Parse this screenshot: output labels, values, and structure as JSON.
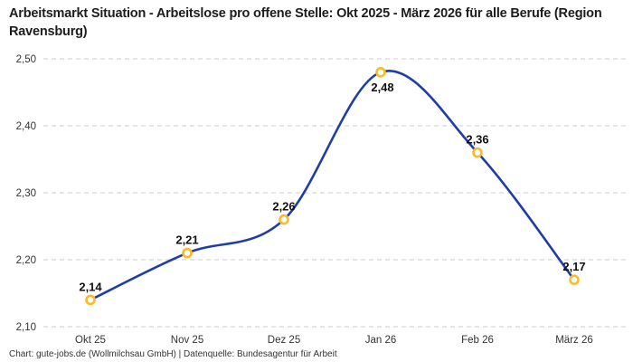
{
  "title": "Arbeitsmarkt Situation - Arbeitslose pro offene Stelle: Okt 2025 - März 2026 für alle Berufe (Region Ravensburg)",
  "footer": "Chart: gute-jobs.de (Wollmilchsau GmbH) | Datenquelle: Bundesagentur für Arbeit",
  "colors": {
    "line": "#1F3DA8",
    "marker_ring": "#F9BB26",
    "marker_fill": "#FFFFFF",
    "grid": "#CFCFCF",
    "axis_text": "#333333",
    "data_label": "#111111",
    "title_text": "#1D1D1F",
    "background": "#FFFFFF"
  },
  "chart_data": {
    "type": "line",
    "title": "Arbeitsmarkt Situation - Arbeitslose pro offene Stelle: Okt 2025 - März 2026 für alle Berufe (Region Ravensburg)",
    "categories": [
      "Okt 25",
      "Nov 25",
      "Dez 25",
      "Jan 26",
      "Feb 26",
      "März 26"
    ],
    "values": [
      2.14,
      2.21,
      2.26,
      2.48,
      2.36,
      2.17
    ],
    "value_labels": [
      "2,14",
      "2,21",
      "2,26",
      "2,48",
      "2,36",
      "2,17"
    ],
    "xlabel": "",
    "ylabel": "",
    "ylim": [
      2.1,
      2.5
    ],
    "y_tick_values": [
      2.1,
      2.2,
      2.3,
      2.4,
      2.5
    ],
    "y_tick_labels": [
      "2,10",
      "2,20",
      "2,30",
      "2,40",
      "2,50"
    ],
    "grid": "horizontal-dashed",
    "legend": "none",
    "line_style": "smooth-spline",
    "marker": "open-circle"
  }
}
